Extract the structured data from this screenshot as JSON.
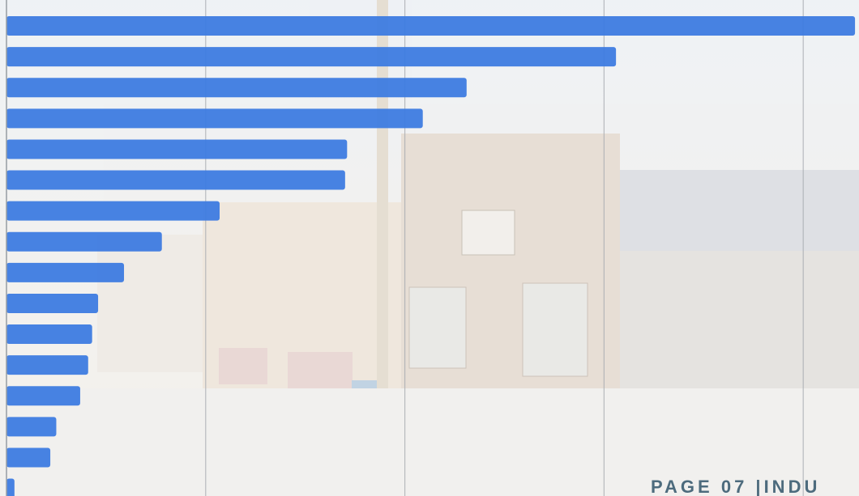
{
  "chart_data": {
    "type": "hbar",
    "categories": [
      null,
      null,
      null,
      null,
      null,
      null,
      null,
      null,
      null,
      null,
      null,
      null,
      null,
      null,
      null,
      null
    ],
    "values": [
      4.26,
      3.06,
      2.31,
      2.09,
      1.71,
      1.7,
      1.07,
      0.78,
      0.59,
      0.46,
      0.43,
      0.41,
      0.37,
      0.25,
      0.22,
      0.04
    ],
    "color": "#3d7be0",
    "xlim": [
      0,
      4.28
    ],
    "xticks": [
      0,
      1,
      2,
      3,
      4
    ],
    "grid": true
  },
  "footer": "PAGE 07 |INDU"
}
